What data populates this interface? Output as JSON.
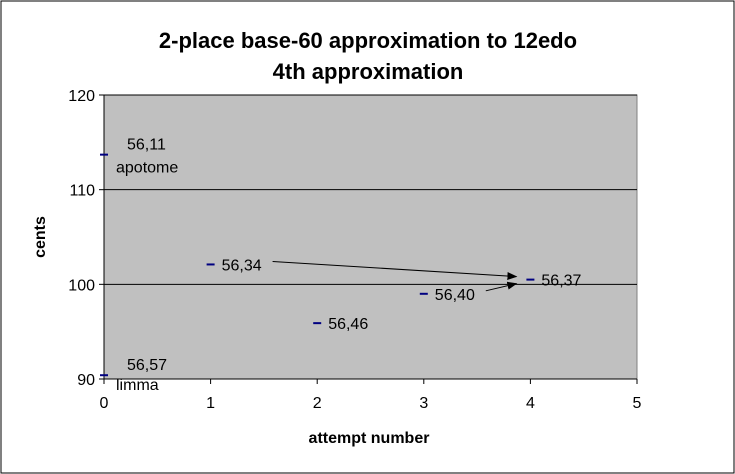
{
  "chart_data": {
    "type": "scatter",
    "title": "2-place base-60 approximation to 12edo",
    "subtitle": "4th approximation",
    "xlabel": "attempt number",
    "ylabel": "cents",
    "xlim": [
      0,
      5
    ],
    "ylim": [
      90,
      120
    ],
    "xticks": [
      0,
      1,
      2,
      3,
      4,
      5
    ],
    "yticks": [
      90,
      100,
      110,
      120
    ],
    "grid": "horizontal",
    "plot_background": "#c0c0c0",
    "marker_color": "#000080",
    "points": [
      {
        "x": 0,
        "y": 113.7,
        "label": "56,11",
        "note": "apotome"
      },
      {
        "x": 0,
        "y": 90.4,
        "label": "56,57",
        "note": "limma"
      },
      {
        "x": 1,
        "y": 102.1,
        "label": "56,34",
        "note": ""
      },
      {
        "x": 2,
        "y": 95.9,
        "label": "56,46",
        "note": ""
      },
      {
        "x": 3,
        "y": 99.0,
        "label": "56,40",
        "note": ""
      },
      {
        "x": 4,
        "y": 100.5,
        "label": "56,37",
        "note": ""
      }
    ],
    "arrows": [
      {
        "from": 2,
        "to": 5
      },
      {
        "from": 4,
        "to": 5
      }
    ]
  }
}
